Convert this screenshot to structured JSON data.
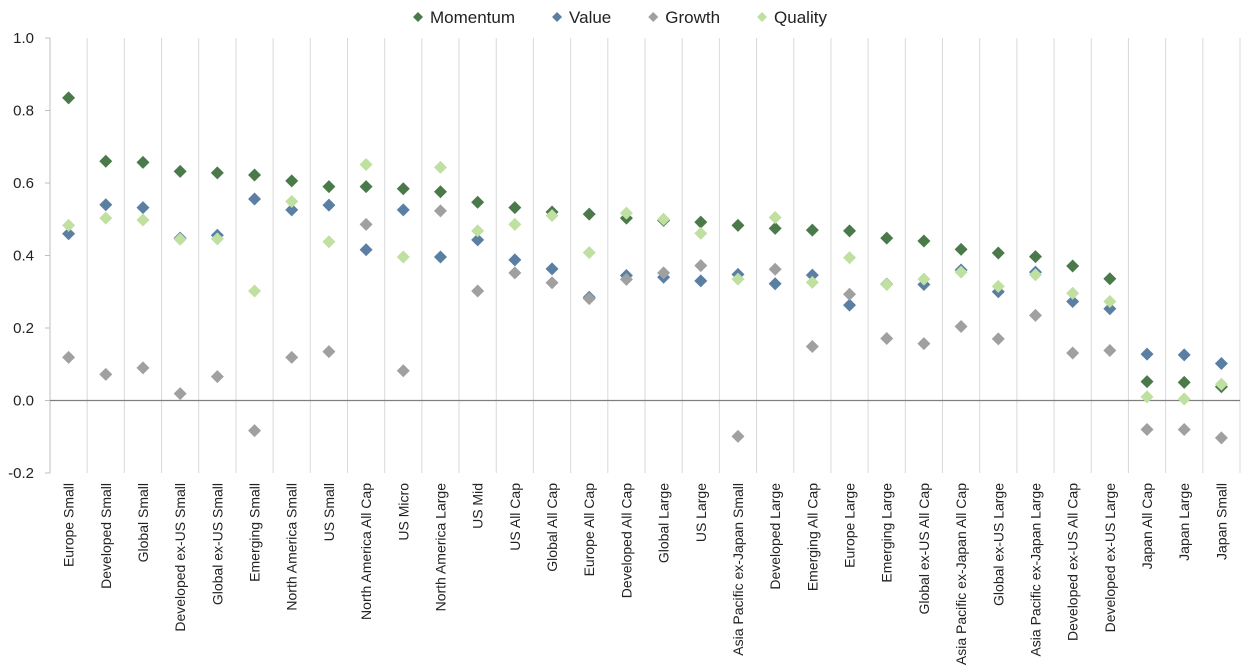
{
  "chart_data": {
    "type": "scatter",
    "title": "",
    "xlabel": "",
    "ylabel": "",
    "ylim": [
      -0.2,
      1.0
    ],
    "yticks": [
      "1.0",
      "0.8",
      "0.6",
      "0.4",
      "0.2",
      "0.0",
      "-0.2"
    ],
    "ytick_values": [
      1.0,
      0.8,
      0.6,
      0.4,
      0.2,
      0.0,
      -0.2
    ],
    "grid": "vertical",
    "legend_position": "top",
    "categories": [
      "Europe Small",
      "Developed Small",
      "Global Small",
      "Developed ex-US Small",
      "Global ex-US Small",
      "Emerging Small",
      "North America Small",
      "US Small",
      "North America All Cap",
      "US Micro",
      "North America Large",
      "US Mid",
      "US All Cap",
      "Global All Cap",
      "Europe All Cap",
      "Developed All Cap",
      "Global Large",
      "US Large",
      "Asia Pacific ex-Japan Small",
      "Developed Large",
      "Emerging All Cap",
      "Europe Large",
      "Emerging Large",
      "Global ex-US All Cap",
      "Asia Pacific ex-Japan All Cap",
      "Global ex-US Large",
      "Asia Pacific ex-Japan Large",
      "Developed ex-US All Cap",
      "Developed ex-US Large",
      "Japan All Cap",
      "Japan Large",
      "Japan Small"
    ],
    "series": [
      {
        "name": "Momentum",
        "color": "#4a7a4a",
        "values": [
          0.835,
          0.66,
          0.657,
          0.632,
          0.628,
          0.622,
          0.606,
          0.59,
          0.59,
          0.584,
          0.576,
          0.547,
          0.532,
          0.52,
          0.514,
          0.503,
          0.497,
          0.492,
          0.483,
          0.475,
          0.47,
          0.468,
          0.448,
          0.44,
          0.417,
          0.407,
          0.397,
          0.371,
          0.336,
          0.052,
          0.05,
          0.038
        ]
      },
      {
        "name": "Value",
        "color": "#5b7fa3",
        "values": [
          0.46,
          0.54,
          0.532,
          0.448,
          0.456,
          0.556,
          0.526,
          0.539,
          0.416,
          0.526,
          0.396,
          0.443,
          0.388,
          0.363,
          0.285,
          0.345,
          0.34,
          0.33,
          0.348,
          0.322,
          0.346,
          0.263,
          0.321,
          0.32,
          0.36,
          0.3,
          0.354,
          0.273,
          0.253,
          0.128,
          0.126,
          0.102
        ]
      },
      {
        "name": "Growth",
        "color": "#a0a0a0",
        "values": [
          0.119,
          0.072,
          0.09,
          0.019,
          0.066,
          -0.083,
          0.119,
          0.135,
          0.486,
          0.082,
          0.523,
          0.302,
          0.352,
          0.325,
          0.281,
          0.334,
          0.352,
          0.372,
          -0.099,
          0.362,
          0.149,
          0.293,
          0.171,
          0.157,
          0.204,
          0.17,
          0.235,
          0.131,
          0.138,
          -0.08,
          -0.08,
          -0.103
        ]
      },
      {
        "name": "Quality",
        "color": "#bfe0a0",
        "values": [
          0.483,
          0.503,
          0.498,
          0.445,
          0.446,
          0.302,
          0.549,
          0.438,
          0.651,
          0.396,
          0.643,
          0.468,
          0.486,
          0.51,
          0.408,
          0.517,
          0.5,
          0.461,
          0.335,
          0.505,
          0.326,
          0.394,
          0.32,
          0.335,
          0.354,
          0.315,
          0.347,
          0.296,
          0.273,
          0.01,
          0.004,
          0.045
        ]
      }
    ]
  }
}
